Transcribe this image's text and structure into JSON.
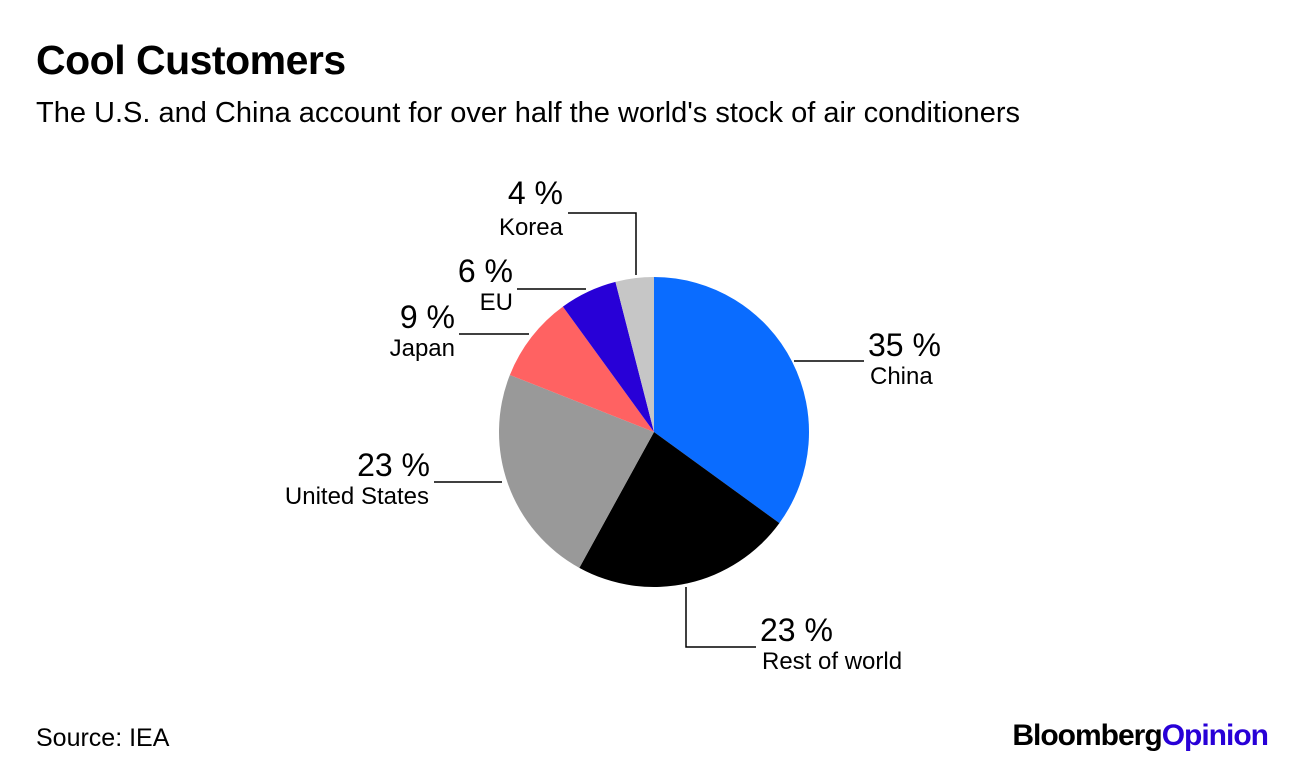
{
  "header": {
    "title": "Cool Customers",
    "subtitle": "The U.S. and China account for over half the world's stock of air conditioners"
  },
  "footer": {
    "source": "Source: IEA",
    "logo_brand": "Bloomberg",
    "logo_opinion": "Opinion"
  },
  "colors": {
    "opinion_accent": "#2800d7"
  },
  "chart_data": {
    "type": "pie",
    "title": "Cool Customers",
    "subtitle": "The U.S. and China account for over half the world's stock of air conditioners",
    "unit": "%",
    "slices": [
      {
        "label": "China",
        "value": 35,
        "display": "35 %",
        "color": "#0a6cff"
      },
      {
        "label": "Rest of world",
        "value": 23,
        "display": "23 %",
        "color": "#000000"
      },
      {
        "label": "United States",
        "value": 23,
        "display": "23 %",
        "color": "#999999"
      },
      {
        "label": "Japan",
        "value": 9,
        "display": "9 %",
        "color": "#ff6262"
      },
      {
        "label": "EU",
        "value": 6,
        "display": "6 %",
        "color": "#2800d7"
      },
      {
        "label": "Korea",
        "value": 4,
        "display": "4 %",
        "color": "#c6c6c6"
      }
    ],
    "start_angle": "12 o'clock",
    "direction": "clockwise",
    "labels": "outside with leader lines"
  }
}
